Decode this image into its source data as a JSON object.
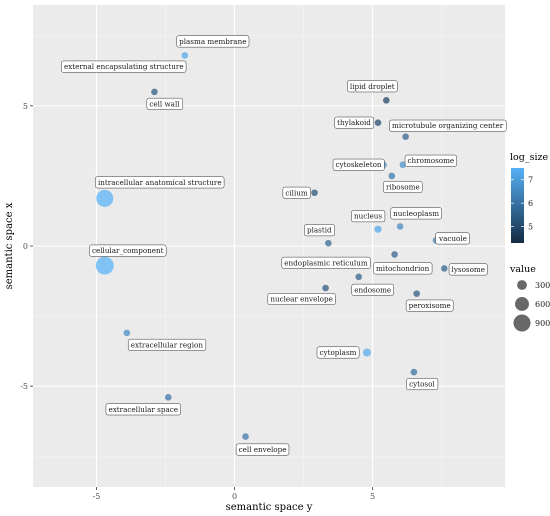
{
  "chart_data": {
    "type": "scatter",
    "xlabel": "semantic space y",
    "ylabel": "semantic space x",
    "xlim": [
      -7.3,
      9.8
    ],
    "ylim": [
      -8.6,
      8.6
    ],
    "xticks": [
      -5,
      0,
      5
    ],
    "yticks": [
      -5,
      0,
      5
    ],
    "grid": true,
    "legend_position": "right",
    "color_legend": {
      "title": "log_size",
      "ticks": [
        5,
        6,
        7
      ],
      "range": [
        4.3,
        7.5
      ],
      "low_color": "#132B43",
      "high_color": "#56B1F7"
    },
    "size_legend": {
      "title": "value",
      "ticks": [
        300,
        600,
        900
      ]
    },
    "points": [
      {
        "label": "plasma membrane",
        "x": -1.8,
        "y": 6.8,
        "log_size": 7.2,
        "value": 80
      },
      {
        "label": "external encapsulating structure",
        "x": -2.2,
        "y": 6.4,
        "log_size": 6.3,
        "value": 50
      },
      {
        "label": "cell wall",
        "x": -2.9,
        "y": 5.5,
        "log_size": 5.4,
        "value": 50
      },
      {
        "label": "lipid droplet",
        "x": 5.5,
        "y": 5.2,
        "log_size": 4.8,
        "value": 40
      },
      {
        "label": "thylakoid",
        "x": 5.2,
        "y": 4.4,
        "log_size": 5.0,
        "value": 60
      },
      {
        "label": "microtubule organizing center",
        "x": 6.2,
        "y": 3.9,
        "log_size": 5.6,
        "value": 55
      },
      {
        "label": "cytoskeleton",
        "x": 5.4,
        "y": 2.9,
        "log_size": 6.6,
        "value": 90
      },
      {
        "label": "chromosome",
        "x": 6.1,
        "y": 2.9,
        "log_size": 6.7,
        "value": 110
      },
      {
        "label": "ribosome",
        "x": 5.7,
        "y": 2.5,
        "log_size": 6.0,
        "value": 60
      },
      {
        "label": "cilium",
        "x": 2.9,
        "y": 1.9,
        "log_size": 5.2,
        "value": 55
      },
      {
        "label": "intracellular anatomical structure",
        "x": -4.7,
        "y": 1.7,
        "log_size": 7.5,
        "value": 900
      },
      {
        "label": "nucleus",
        "x": 5.2,
        "y": 0.6,
        "log_size": 7.2,
        "value": 160
      },
      {
        "label": "nucleoplasm",
        "x": 6.0,
        "y": 0.7,
        "log_size": 6.5,
        "value": 80
      },
      {
        "label": "plastid",
        "x": 3.4,
        "y": 0.1,
        "log_size": 5.7,
        "value": 90
      },
      {
        "label": "vacuole",
        "x": 7.3,
        "y": 0.2,
        "log_size": 6.4,
        "value": 60
      },
      {
        "label": "cellular_component",
        "x": -4.7,
        "y": -0.7,
        "log_size": 7.6,
        "value": 1000
      },
      {
        "label": "endoplasmic reticulum",
        "x": 4.8,
        "y": -0.6,
        "log_size": 5.8,
        "value": 60
      },
      {
        "label": "mitochondrion",
        "x": 5.8,
        "y": -0.3,
        "log_size": 5.6,
        "value": 60
      },
      {
        "label": "lysosome",
        "x": 7.6,
        "y": -0.8,
        "log_size": 5.6,
        "value": 50
      },
      {
        "label": "endosome",
        "x": 4.5,
        "y": -1.1,
        "log_size": 5.5,
        "value": 60
      },
      {
        "label": "nuclear envelope",
        "x": 3.3,
        "y": -1.5,
        "log_size": 5.3,
        "value": 50
      },
      {
        "label": "peroxisome",
        "x": 6.6,
        "y": -1.7,
        "log_size": 5.4,
        "value": 45
      },
      {
        "label": "extracellular region",
        "x": -3.9,
        "y": -3.1,
        "log_size": 6.6,
        "value": 60
      },
      {
        "label": "cytoplasm",
        "x": 4.8,
        "y": -3.8,
        "log_size": 7.3,
        "value": 200
      },
      {
        "label": "cytosol",
        "x": 6.5,
        "y": -4.5,
        "log_size": 5.9,
        "value": 60
      },
      {
        "label": "extracellular space",
        "x": -2.4,
        "y": -5.4,
        "log_size": 6.0,
        "value": 45
      },
      {
        "label": "cell envelope",
        "x": 0.4,
        "y": -6.8,
        "log_size": 6.0,
        "value": 45
      }
    ]
  }
}
